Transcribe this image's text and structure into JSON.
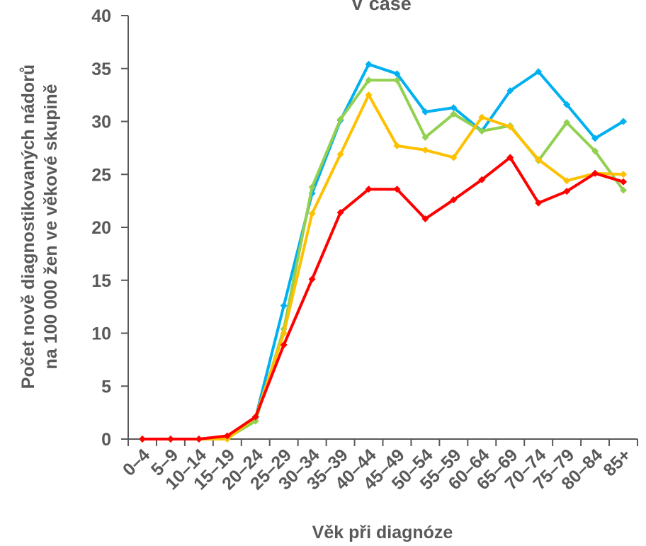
{
  "chart_data": {
    "type": "line",
    "title": "V čase",
    "xlabel": "Věk při diagnóze",
    "ylabel_line1": "Počet nově diagnostikovaných nádorů",
    "ylabel_line2": "na 100 000 žen ve věkové skupině",
    "ylim": [
      0,
      40
    ],
    "yticks": [
      "0",
      "5",
      "10",
      "15",
      "20",
      "25",
      "30",
      "35",
      "40"
    ],
    "grid": false,
    "legend": "none",
    "categories": [
      "0–4",
      "5–9",
      "10–14",
      "15–19",
      "20–24",
      "25–29",
      "30–34",
      "35–39",
      "40–44",
      "45–49",
      "50–54",
      "55–59",
      "60–64",
      "65–69",
      "70–74",
      "75–79",
      "80–84",
      "85+"
    ],
    "series": [
      {
        "color": "#00B0F0",
        "values": [
          0.0,
          0.0,
          0.0,
          0.1,
          2.0,
          12.6,
          23.2,
          30.1,
          35.4,
          34.5,
          30.9,
          31.3,
          29.1,
          32.9,
          34.7,
          31.6,
          28.4,
          30.0
        ]
      },
      {
        "color": "#92D050",
        "values": [
          0.0,
          0.0,
          0.0,
          0.1,
          1.7,
          10.4,
          23.8,
          30.2,
          33.9,
          33.9,
          28.5,
          30.7,
          29.1,
          29.6,
          26.3,
          29.9,
          27.2,
          23.5
        ]
      },
      {
        "color": "#FFC000",
        "values": [
          0.0,
          0.0,
          0.0,
          0.0,
          2.1,
          10.0,
          21.3,
          26.9,
          32.5,
          27.7,
          27.3,
          26.6,
          30.4,
          29.5,
          26.4,
          24.4,
          25.1,
          25.0
        ]
      },
      {
        "color": "#FF0000",
        "values": [
          0.0,
          0.0,
          0.0,
          0.3,
          2.1,
          8.9,
          15.1,
          21.4,
          23.6,
          23.6,
          20.8,
          22.6,
          24.5,
          26.6,
          22.3,
          23.4,
          25.1,
          24.3
        ]
      }
    ]
  }
}
